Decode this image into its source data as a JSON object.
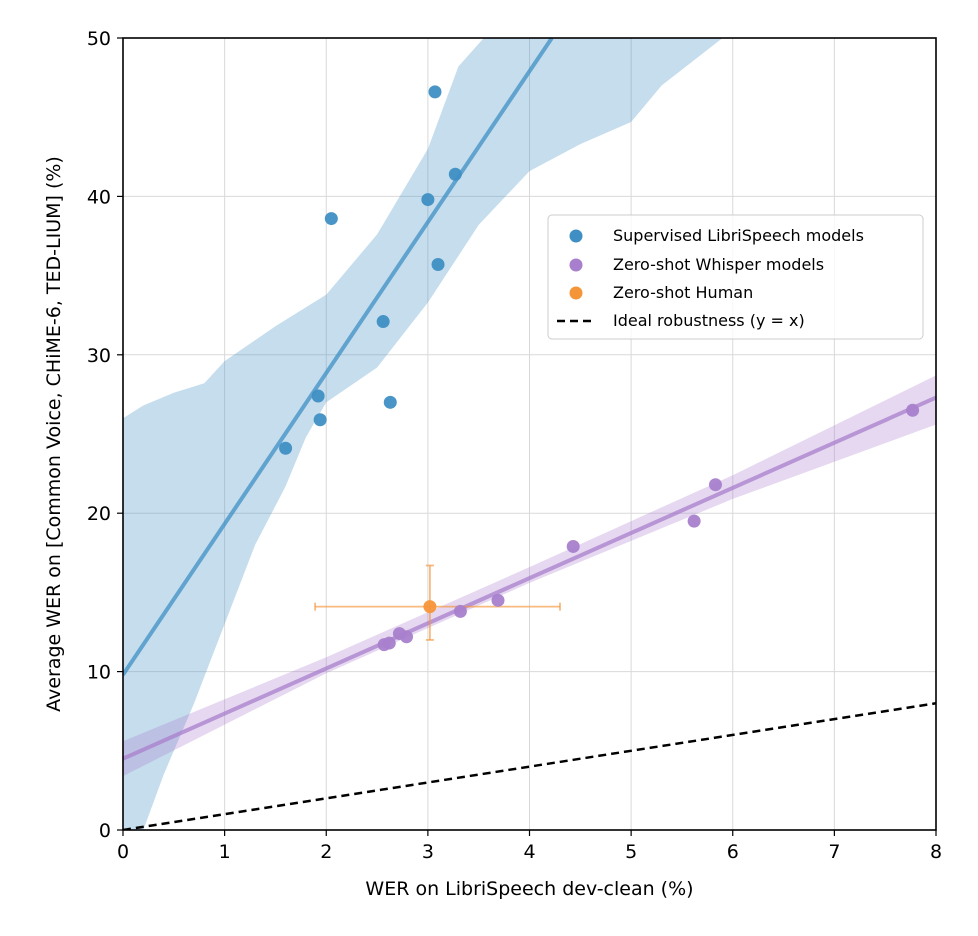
{
  "chart_data": {
    "type": "scatter",
    "xlabel": "WER on LibriSpeech dev-clean (%)",
    "ylabel": "Average WER on [Common Voice, CHiME-6, TED-LIUM] (%)",
    "xlim": [
      0,
      8
    ],
    "ylim": [
      0,
      50
    ],
    "x_ticks": [
      0,
      1,
      2,
      3,
      4,
      5,
      6,
      7,
      8
    ],
    "y_ticks": [
      0,
      10,
      20,
      30,
      40,
      50
    ],
    "grid": true,
    "legend_position": "center-right",
    "series": [
      {
        "name": "Supervised LibriSpeech models",
        "color": "#3f8fc4",
        "points": [
          [
            1.6,
            24.1
          ],
          [
            1.92,
            27.4
          ],
          [
            1.94,
            25.9
          ],
          [
            2.05,
            38.6
          ],
          [
            2.56,
            32.1
          ],
          [
            2.63,
            27.0
          ],
          [
            3.0,
            39.8
          ],
          [
            3.07,
            46.6
          ],
          [
            3.1,
            35.7
          ],
          [
            3.27,
            41.4
          ]
        ],
        "fit": {
          "x": [
            0,
            4.22
          ],
          "y": [
            9.8,
            50
          ]
        },
        "band_upper": [
          [
            0,
            26
          ],
          [
            0.2,
            26.8
          ],
          [
            0.5,
            27.6
          ],
          [
            0.8,
            28.2
          ],
          [
            1.0,
            29.6
          ],
          [
            1.5,
            31.8
          ],
          [
            2.0,
            33.8
          ],
          [
            2.5,
            37.6
          ],
          [
            3.0,
            43.0
          ],
          [
            3.3,
            48.2
          ],
          [
            3.55,
            50
          ]
        ],
        "band_lower": [
          [
            0.2,
            0
          ],
          [
            0.4,
            3.5
          ],
          [
            0.7,
            8
          ],
          [
            1.0,
            13
          ],
          [
            1.3,
            18
          ],
          [
            1.6,
            21.7
          ],
          [
            1.8,
            24.8
          ],
          [
            2.0,
            27
          ],
          [
            2.5,
            29.2
          ],
          [
            3.0,
            33.3
          ],
          [
            3.5,
            38.2
          ],
          [
            4.0,
            41.6
          ],
          [
            4.5,
            43.3
          ],
          [
            5.0,
            44.7
          ],
          [
            5.3,
            47.0
          ],
          [
            5.9,
            50
          ]
        ]
      },
      {
        "name": "Zero-shot Whisper models",
        "color": "#a87fcc",
        "points": [
          [
            2.57,
            11.7
          ],
          [
            2.62,
            11.8
          ],
          [
            2.72,
            12.4
          ],
          [
            2.79,
            12.2
          ],
          [
            3.32,
            13.8
          ],
          [
            3.69,
            14.5
          ],
          [
            4.43,
            17.9
          ],
          [
            5.62,
            19.5
          ],
          [
            5.83,
            21.8
          ],
          [
            7.77,
            26.5
          ]
        ],
        "fit": {
          "x": [
            0,
            8
          ],
          "y": [
            4.5,
            27.3
          ]
        },
        "band_upper": [
          [
            0,
            5.6
          ],
          [
            2,
            10.9
          ],
          [
            4,
            16.6
          ],
          [
            6,
            22.4
          ],
          [
            8,
            28.7
          ]
        ],
        "band_lower": [
          [
            0,
            3.4
          ],
          [
            2,
            9.9
          ],
          [
            4,
            15.6
          ],
          [
            6,
            20.9
          ],
          [
            8,
            25.6
          ]
        ]
      },
      {
        "name": "Zero-shot Human",
        "color": "#f5953a",
        "points": [
          [
            3.02,
            14.1
          ]
        ],
        "x_err": [
          1.13,
          1.28
        ],
        "y_err": [
          2.1,
          2.6
        ]
      }
    ],
    "reference_line": {
      "name": "Ideal robustness (y = x)",
      "color": "#000000",
      "style": "dashed",
      "x": [
        0,
        8
      ],
      "y": [
        0,
        8
      ]
    }
  }
}
